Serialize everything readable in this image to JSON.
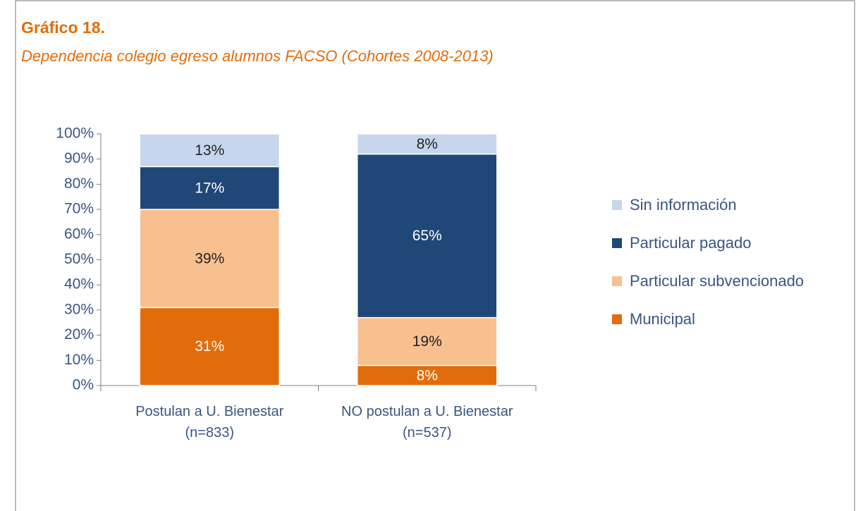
{
  "chart_data": {
    "type": "stacked_bar",
    "title": "Gráfico 18.",
    "subtitle": "Dependencia colegio egreso alumnos FACSO (Cohortes 2008-2013)",
    "categories": [
      "Postulan a U. Bienestar\n(n=833)",
      "NO postulan a U. Bienestar\n(n=537)"
    ],
    "series": [
      {
        "name": "Municipal",
        "color": "#e36c0a",
        "values": [
          31,
          8
        ],
        "value_labels": [
          "31%",
          "8%"
        ]
      },
      {
        "name": "Particular subvencionado",
        "color": "#f8bf8f",
        "values": [
          39,
          19
        ],
        "value_labels": [
          "39%",
          "19%"
        ]
      },
      {
        "name": "Particular pagado",
        "color": "#1f4778",
        "values": [
          17,
          65
        ],
        "value_labels": [
          "17%",
          "65%"
        ]
      },
      {
        "name": "Sin información",
        "color": "#c6d6ee",
        "values": [
          13,
          8
        ],
        "value_labels": [
          "13%",
          "8%"
        ]
      }
    ],
    "ylim": [
      0,
      100
    ],
    "yticks": [
      {
        "value": 0,
        "label": "0%"
      },
      {
        "value": 10,
        "label": "10%"
      },
      {
        "value": 20,
        "label": "20%"
      },
      {
        "value": 30,
        "label": "30%"
      },
      {
        "value": 40,
        "label": "40%"
      },
      {
        "value": 50,
        "label": "50%"
      },
      {
        "value": 60,
        "label": "60%"
      },
      {
        "value": 70,
        "label": "70%"
      },
      {
        "value": 80,
        "label": "80%"
      },
      {
        "value": 90,
        "label": "90%"
      },
      {
        "value": 100,
        "label": "100%"
      }
    ],
    "legend": "right"
  }
}
